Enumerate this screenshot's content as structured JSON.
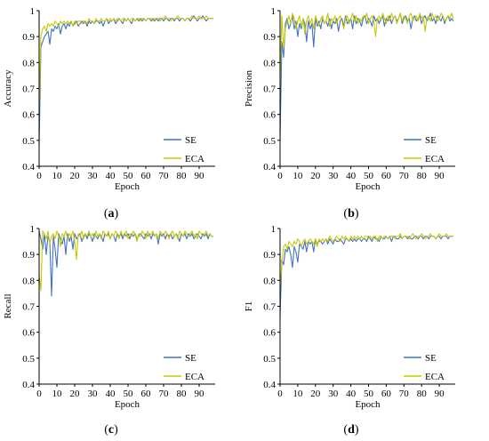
{
  "colors": {
    "SE": "#4472C4",
    "ECA": "#C8C800",
    "axis": "#000000"
  },
  "chart_data": [
    {
      "type": "line",
      "panel_label": "a",
      "xlabel": "Epoch",
      "ylabel": "Accuracy",
      "xlim": [
        0,
        99
      ],
      "ylim": [
        0.4,
        1.0
      ],
      "x_ticks": [
        0,
        10,
        20,
        30,
        40,
        50,
        60,
        70,
        80,
        90
      ],
      "y_ticks": [
        0.4,
        0.5,
        0.6,
        0.7,
        0.8,
        0.9,
        1
      ],
      "legend": "bottom-right",
      "series": [
        {
          "name": "SE",
          "values": [
            0.48,
            0.86,
            0.88,
            0.9,
            0.91,
            0.92,
            0.87,
            0.93,
            0.92,
            0.94,
            0.93,
            0.95,
            0.91,
            0.94,
            0.95,
            0.93,
            0.95,
            0.94,
            0.96,
            0.94,
            0.95,
            0.96,
            0.94,
            0.95,
            0.96,
            0.95,
            0.96,
            0.94,
            0.96,
            0.95,
            0.96,
            0.95,
            0.96,
            0.96,
            0.95,
            0.96,
            0.94,
            0.96,
            0.97,
            0.95,
            0.96,
            0.96,
            0.97,
            0.95,
            0.96,
            0.97,
            0.96,
            0.95,
            0.97,
            0.96,
            0.97,
            0.96,
            0.95,
            0.97,
            0.96,
            0.97,
            0.96,
            0.97,
            0.96,
            0.97,
            0.96,
            0.97,
            0.97,
            0.96,
            0.97,
            0.96,
            0.97,
            0.96,
            0.97,
            0.97,
            0.96,
            0.97,
            0.97,
            0.96,
            0.97,
            0.97,
            0.96,
            0.97,
            0.97,
            0.96,
            0.97,
            0.97,
            0.96,
            0.97,
            0.97,
            0.96,
            0.97,
            0.98,
            0.97,
            0.96,
            0.97,
            0.97,
            0.98,
            0.97,
            0.96,
            0.97,
            0.97,
            0.97,
            0.97
          ]
        },
        {
          "name": "ECA",
          "values": [
            0.62,
            0.9,
            0.93,
            0.94,
            0.92,
            0.95,
            0.94,
            0.95,
            0.94,
            0.96,
            0.95,
            0.94,
            0.96,
            0.95,
            0.96,
            0.95,
            0.96,
            0.95,
            0.96,
            0.94,
            0.96,
            0.95,
            0.96,
            0.96,
            0.95,
            0.96,
            0.96,
            0.95,
            0.97,
            0.96,
            0.96,
            0.95,
            0.97,
            0.96,
            0.96,
            0.97,
            0.96,
            0.96,
            0.97,
            0.96,
            0.97,
            0.96,
            0.97,
            0.96,
            0.97,
            0.97,
            0.96,
            0.97,
            0.97,
            0.96,
            0.97,
            0.96,
            0.97,
            0.97,
            0.96,
            0.97,
            0.97,
            0.96,
            0.97,
            0.97,
            0.96,
            0.97,
            0.97,
            0.97,
            0.96,
            0.97,
            0.97,
            0.97,
            0.96,
            0.97,
            0.97,
            0.98,
            0.97,
            0.97,
            0.96,
            0.97,
            0.97,
            0.97,
            0.98,
            0.97,
            0.97,
            0.97,
            0.96,
            0.97,
            0.97,
            0.97,
            0.98,
            0.97,
            0.97,
            0.97,
            0.98,
            0.97,
            0.97,
            0.97,
            0.98,
            0.97,
            0.97,
            0.97,
            0.97
          ]
        }
      ]
    },
    {
      "type": "line",
      "panel_label": "b",
      "xlabel": "Epoch",
      "ylabel": "Precision",
      "xlim": [
        0,
        99
      ],
      "ylim": [
        0.4,
        1.0
      ],
      "x_ticks": [
        0,
        10,
        20,
        30,
        40,
        50,
        60,
        70,
        80,
        90
      ],
      "y_ticks": [
        0.4,
        0.5,
        0.6,
        0.7,
        0.8,
        0.9,
        1
      ],
      "legend": "bottom-right",
      "series": [
        {
          "name": "SE",
          "values": [
            0.5,
            0.88,
            0.82,
            0.95,
            0.97,
            0.93,
            0.95,
            0.98,
            0.93,
            0.96,
            0.9,
            0.95,
            0.93,
            0.97,
            0.95,
            0.88,
            0.96,
            0.93,
            0.95,
            0.86,
            0.97,
            0.94,
            0.96,
            0.93,
            0.97,
            0.95,
            0.96,
            0.94,
            0.97,
            0.93,
            0.96,
            0.95,
            0.97,
            0.92,
            0.96,
            0.97,
            0.94,
            0.98,
            0.95,
            0.96,
            0.97,
            0.93,
            0.98,
            0.95,
            0.97,
            0.96,
            0.94,
            0.97,
            0.98,
            0.95,
            0.97,
            0.96,
            0.94,
            0.98,
            0.96,
            0.97,
            0.95,
            0.97,
            0.98,
            0.94,
            0.97,
            0.96,
            0.98,
            0.95,
            0.97,
            0.98,
            0.96,
            0.97,
            0.99,
            0.95,
            0.97,
            0.98,
            0.96,
            0.97,
            0.93,
            0.97,
            0.98,
            0.96,
            0.97,
            0.98,
            0.95,
            0.97,
            0.98,
            0.96,
            0.97,
            0.99,
            0.96,
            0.97,
            0.95,
            0.98,
            0.97,
            0.96,
            0.98,
            0.95,
            0.97,
            0.98,
            0.96,
            0.97,
            0.96
          ]
        },
        {
          "name": "ECA",
          "values": [
            0.72,
            0.98,
            0.86,
            0.93,
            0.96,
            0.98,
            0.95,
            0.99,
            0.97,
            0.93,
            0.96,
            0.98,
            0.94,
            0.97,
            0.91,
            0.96,
            0.98,
            0.95,
            0.97,
            0.93,
            0.98,
            0.96,
            0.94,
            0.97,
            0.98,
            0.95,
            0.96,
            0.99,
            0.94,
            0.97,
            0.96,
            0.98,
            0.95,
            0.97,
            0.98,
            0.96,
            0.93,
            0.97,
            0.98,
            0.95,
            0.97,
            0.99,
            0.96,
            0.98,
            0.95,
            0.97,
            0.96,
            0.98,
            0.97,
            0.99,
            0.95,
            0.97,
            0.98,
            0.96,
            0.9,
            0.97,
            0.98,
            0.96,
            0.99,
            0.97,
            0.95,
            0.98,
            0.96,
            0.99,
            0.97,
            0.98,
            0.95,
            0.97,
            0.99,
            0.96,
            0.98,
            0.97,
            0.95,
            0.98,
            0.99,
            0.96,
            0.97,
            0.98,
            0.96,
            0.99,
            0.97,
            0.98,
            0.92,
            0.97,
            0.98,
            0.96,
            0.99,
            0.97,
            0.98,
            0.96,
            0.97,
            0.99,
            0.98,
            0.96,
            0.97,
            0.98,
            0.97,
            0.99,
            0.97
          ]
        }
      ]
    },
    {
      "type": "line",
      "panel_label": "c",
      "xlabel": "Epoch",
      "ylabel": "Recall",
      "xlim": [
        0,
        99
      ],
      "ylim": [
        0.4,
        1.0
      ],
      "x_ticks": [
        0,
        10,
        20,
        30,
        40,
        50,
        60,
        70,
        80,
        90
      ],
      "y_ticks": [
        0.4,
        0.5,
        0.6,
        0.7,
        0.8,
        0.9,
        1
      ],
      "legend": "bottom-right",
      "series": [
        {
          "name": "SE",
          "values": [
            0.99,
            0.96,
            0.92,
            0.98,
            0.9,
            0.97,
            0.95,
            0.74,
            0.97,
            0.92,
            0.85,
            0.98,
            0.96,
            0.94,
            0.97,
            0.9,
            0.98,
            0.95,
            0.97,
            0.92,
            0.98,
            0.96,
            0.97,
            0.98,
            0.95,
            0.97,
            0.98,
            0.96,
            0.98,
            0.97,
            0.95,
            0.98,
            0.97,
            0.96,
            0.98,
            0.97,
            0.95,
            0.98,
            0.97,
            0.98,
            0.96,
            0.98,
            0.97,
            0.95,
            0.98,
            0.97,
            0.98,
            0.96,
            0.98,
            0.97,
            0.98,
            0.96,
            0.98,
            0.97,
            0.98,
            0.96,
            0.97,
            0.98,
            0.97,
            0.96,
            0.98,
            0.97,
            0.98,
            0.96,
            0.98,
            0.97,
            0.98,
            0.94,
            0.98,
            0.97,
            0.98,
            0.96,
            0.98,
            0.97,
            0.98,
            0.96,
            0.97,
            0.98,
            0.97,
            0.95,
            0.98,
            0.97,
            0.98,
            0.96,
            0.98,
            0.97,
            0.98,
            0.96,
            0.97,
            0.98,
            0.97,
            0.96,
            0.98,
            0.97,
            0.98,
            0.96,
            0.98,
            0.97,
            0.97
          ]
        },
        {
          "name": "ECA",
          "values": [
            0.82,
            0.76,
            0.99,
            0.98,
            0.96,
            0.99,
            0.94,
            0.97,
            0.98,
            0.96,
            0.99,
            0.97,
            0.93,
            0.98,
            0.97,
            0.99,
            0.96,
            0.98,
            0.97,
            0.99,
            0.95,
            0.88,
            0.98,
            0.97,
            0.99,
            0.96,
            0.98,
            0.97,
            0.99,
            0.97,
            0.98,
            0.96,
            0.99,
            0.97,
            0.98,
            0.96,
            0.99,
            0.98,
            0.97,
            0.99,
            0.96,
            0.98,
            0.97,
            0.99,
            0.98,
            0.96,
            0.99,
            0.97,
            0.98,
            0.99,
            0.96,
            0.98,
            0.97,
            0.99,
            0.98,
            0.95,
            0.98,
            0.97,
            0.99,
            0.98,
            0.96,
            0.99,
            0.97,
            0.98,
            0.99,
            0.97,
            0.98,
            0.96,
            0.99,
            0.98,
            0.97,
            0.99,
            0.98,
            0.96,
            0.98,
            0.99,
            0.97,
            0.98,
            0.96,
            0.99,
            0.98,
            0.97,
            0.99,
            0.98,
            0.97,
            0.98,
            0.99,
            0.97,
            0.98,
            0.96,
            0.99,
            0.98,
            0.97,
            0.98,
            0.99,
            0.97,
            0.98,
            0.97,
            0.97
          ]
        }
      ]
    },
    {
      "type": "line",
      "panel_label": "d",
      "xlabel": "Epoch",
      "ylabel": "F1",
      "xlim": [
        0,
        99
      ],
      "ylim": [
        0.4,
        1.0
      ],
      "x_ticks": [
        0,
        10,
        20,
        30,
        40,
        50,
        60,
        70,
        80,
        90
      ],
      "y_ticks": [
        0.4,
        0.5,
        0.6,
        0.7,
        0.8,
        0.9,
        1
      ],
      "legend": "bottom-right",
      "series": [
        {
          "name": "SE",
          "values": [
            0.66,
            0.88,
            0.86,
            0.92,
            0.91,
            0.93,
            0.9,
            0.85,
            0.93,
            0.91,
            0.87,
            0.94,
            0.93,
            0.92,
            0.95,
            0.91,
            0.95,
            0.94,
            0.95,
            0.91,
            0.96,
            0.94,
            0.95,
            0.95,
            0.94,
            0.95,
            0.96,
            0.94,
            0.96,
            0.95,
            0.94,
            0.96,
            0.95,
            0.95,
            0.96,
            0.95,
            0.94,
            0.96,
            0.96,
            0.95,
            0.96,
            0.95,
            0.96,
            0.95,
            0.96,
            0.96,
            0.95,
            0.96,
            0.96,
            0.95,
            0.97,
            0.96,
            0.95,
            0.97,
            0.96,
            0.96,
            0.95,
            0.97,
            0.96,
            0.96,
            0.97,
            0.96,
            0.97,
            0.95,
            0.97,
            0.97,
            0.96,
            0.96,
            0.97,
            0.96,
            0.97,
            0.97,
            0.96,
            0.97,
            0.96,
            0.96,
            0.97,
            0.97,
            0.96,
            0.97,
            0.97,
            0.96,
            0.97,
            0.97,
            0.96,
            0.97,
            0.97,
            0.97,
            0.96,
            0.97,
            0.97,
            0.96,
            0.97,
            0.97,
            0.97,
            0.96,
            0.97,
            0.97,
            0.97
          ]
        },
        {
          "name": "ECA",
          "values": [
            0.78,
            0.86,
            0.93,
            0.94,
            0.92,
            0.95,
            0.94,
            0.93,
            0.95,
            0.94,
            0.96,
            0.95,
            0.93,
            0.95,
            0.96,
            0.94,
            0.95,
            0.96,
            0.95,
            0.94,
            0.96,
            0.93,
            0.96,
            0.95,
            0.96,
            0.95,
            0.96,
            0.95,
            0.97,
            0.96,
            0.95,
            0.96,
            0.97,
            0.96,
            0.95,
            0.97,
            0.96,
            0.97,
            0.96,
            0.95,
            0.97,
            0.96,
            0.97,
            0.96,
            0.97,
            0.96,
            0.97,
            0.96,
            0.97,
            0.97,
            0.96,
            0.97,
            0.96,
            0.97,
            0.97,
            0.95,
            0.97,
            0.97,
            0.96,
            0.97,
            0.97,
            0.96,
            0.97,
            0.97,
            0.97,
            0.96,
            0.97,
            0.97,
            0.98,
            0.96,
            0.97,
            0.97,
            0.97,
            0.96,
            0.97,
            0.98,
            0.97,
            0.96,
            0.97,
            0.97,
            0.98,
            0.97,
            0.96,
            0.97,
            0.97,
            0.98,
            0.97,
            0.97,
            0.96,
            0.97,
            0.98,
            0.97,
            0.97,
            0.97,
            0.98,
            0.97,
            0.97,
            0.97,
            0.97
          ]
        }
      ]
    }
  ]
}
